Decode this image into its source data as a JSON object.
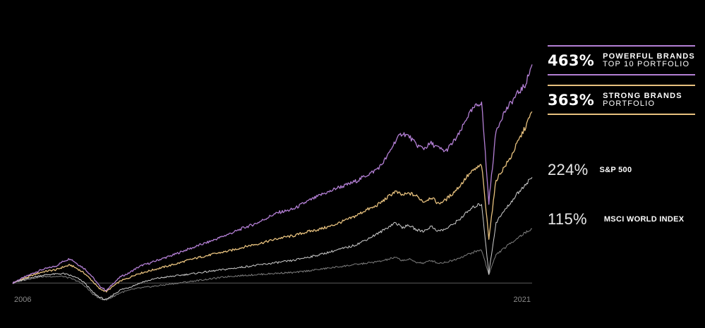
{
  "chart_data": {
    "type": "line",
    "x_start": "2006",
    "x_end": "2021",
    "baseline_pct": 0,
    "ylim": [
      -40,
      480
    ],
    "grid": false,
    "legend_placement": "right",
    "series": [
      {
        "name": "POWERFUL BRANDS",
        "subtitle": "TOP 10 PORTFOLIO",
        "final_label": "463%",
        "color": "#b37fd4",
        "emphasis": true,
        "values": [
          0,
          8,
          15,
          22,
          28,
          32,
          36,
          46,
          52,
          40,
          30,
          14,
          -6,
          -16,
          0,
          14,
          20,
          30,
          38,
          42,
          48,
          53,
          58,
          64,
          70,
          75,
          81,
          86,
          92,
          98,
          104,
          110,
          117,
          122,
          128,
          136,
          144,
          150,
          153,
          157,
          166,
          174,
          181,
          189,
          194,
          202,
          206,
          212,
          219,
          228,
          236,
          248,
          270,
          300,
          318,
          310,
          292,
          285,
          296,
          286,
          279,
          297,
          318,
          352,
          372,
          384,
          170,
          322,
          358,
          380,
          402,
          418,
          463
        ]
      },
      {
        "name": "STRONG BRANDS",
        "subtitle": "PORTFOLIO",
        "final_label": "363%",
        "color": "#e7c17e",
        "emphasis": true,
        "values": [
          0,
          7,
          12,
          18,
          23,
          26,
          28,
          34,
          38,
          30,
          20,
          5,
          -12,
          -18,
          -6,
          5,
          10,
          18,
          22,
          26,
          30,
          34,
          38,
          42,
          47,
          51,
          55,
          58,
          62,
          65,
          68,
          72,
          76,
          80,
          83,
          87,
          91,
          95,
          98,
          100,
          105,
          109,
          112,
          116,
          120,
          126,
          132,
          138,
          146,
          155,
          160,
          170,
          182,
          194,
          186,
          190,
          184,
          172,
          182,
          168,
          176,
          190,
          206,
          226,
          240,
          250,
          95,
          218,
          242,
          265,
          298,
          328,
          363
        ]
      },
      {
        "name": "S&P 500",
        "final_label": "224%",
        "color": "#cfcfcf",
        "emphasis": false,
        "values": [
          0,
          5,
          9,
          13,
          16,
          18,
          19,
          20,
          16,
          10,
          0,
          -18,
          -30,
          -36,
          -24,
          -14,
          -10,
          -4,
          2,
          6,
          10,
          12,
          14,
          16,
          18,
          20,
          22,
          24,
          26,
          28,
          30,
          32,
          34,
          36,
          38,
          40,
          42,
          44,
          46,
          48,
          52,
          55,
          58,
          62,
          66,
          70,
          74,
          78,
          84,
          92,
          100,
          108,
          118,
          128,
          118,
          122,
          112,
          110,
          120,
          110,
          114,
          124,
          136,
          150,
          162,
          168,
          20,
          128,
          150,
          170,
          190,
          208,
          224
        ]
      },
      {
        "name": "MSCI WORLD INDEX",
        "final_label": "115%",
        "color": "#7e7e7e",
        "emphasis": false,
        "values": [
          0,
          4,
          8,
          11,
          13,
          14,
          14,
          14,
          10,
          4,
          -6,
          -22,
          -32,
          -36,
          -28,
          -20,
          -16,
          -12,
          -10,
          -8,
          -6,
          -4,
          -2,
          0,
          2,
          4,
          6,
          8,
          10,
          12,
          14,
          15,
          16,
          17,
          18,
          19,
          20,
          21,
          22,
          22,
          24,
          26,
          28,
          30,
          32,
          34,
          36,
          38,
          40,
          42,
          44,
          46,
          50,
          54,
          48,
          50,
          44,
          42,
          48,
          42,
          44,
          48,
          54,
          60,
          66,
          70,
          18,
          60,
          72,
          84,
          96,
          106,
          115
        ]
      }
    ]
  }
}
